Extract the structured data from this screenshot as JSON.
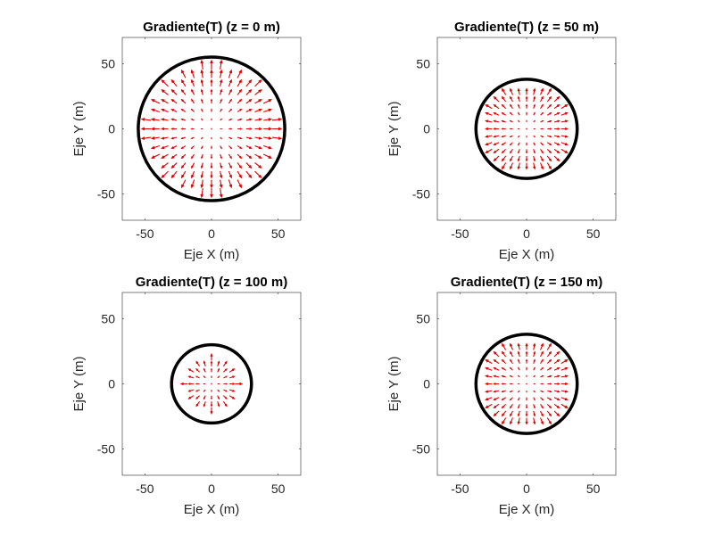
{
  "chart_data": [
    {
      "type": "quiver",
      "title": "Gradiente(T) (z = 0 m)",
      "xlabel": "Eje X (m)",
      "ylabel": "Eje Y (m)",
      "xlim": [
        -67,
        67
      ],
      "ylim": [
        -70,
        70
      ],
      "xticks": [
        -50,
        0,
        50
      ],
      "yticks": [
        -50,
        0,
        50
      ],
      "circle_radius": 55,
      "grid_step": 6.5,
      "field_radius": 46,
      "arrow_color": "#e00000",
      "circle_color": "#000000"
    },
    {
      "type": "quiver",
      "title": "Gradiente(T) (z = 50 m)",
      "xlabel": "Eje X (m)",
      "ylabel": "Eje Y (m)",
      "xlim": [
        -67,
        67
      ],
      "ylim": [
        -70,
        70
      ],
      "xticks": [
        -50,
        0,
        50
      ],
      "yticks": [
        -50,
        0,
        50
      ],
      "circle_radius": 38,
      "grid_step": 5.2,
      "field_radius": 31,
      "arrow_color": "#e00000",
      "circle_color": "#000000"
    },
    {
      "type": "quiver",
      "title": "Gradiente(T) (z = 100 m)",
      "xlabel": "Eje X (m)",
      "ylabel": "Eje Y (m)",
      "xlim": [
        -67,
        67
      ],
      "ylim": [
        -70,
        70
      ],
      "xticks": [
        -50,
        0,
        50
      ],
      "yticks": [
        -50,
        0,
        50
      ],
      "circle_radius": 30,
      "grid_step": 4.5,
      "field_radius": 18,
      "arrow_color": "#e00000",
      "circle_color": "#000000"
    },
    {
      "type": "quiver",
      "title": "Gradiente(T) (z = 150 m)",
      "xlabel": "Eje X (m)",
      "ylabel": "Eje Y (m)",
      "xlim": [
        -67,
        67
      ],
      "ylim": [
        -70,
        70
      ],
      "xticks": [
        -50,
        0,
        50
      ],
      "yticks": [
        -50,
        0,
        50
      ],
      "circle_radius": 38,
      "grid_step": 5.2,
      "field_radius": 31,
      "arrow_color": "#e00000",
      "circle_color": "#000000"
    }
  ]
}
